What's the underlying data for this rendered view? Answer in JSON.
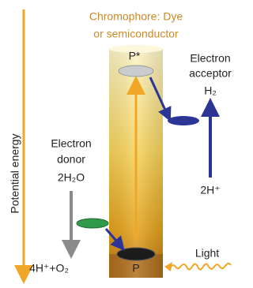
{
  "chromophore": {
    "title": [
      "Chromophore: Dye",
      "or semiconductor"
    ],
    "excited_state": "P*",
    "ground_state": "P"
  },
  "axis_label": "Potential energy",
  "acceptor": {
    "label": [
      "Electron",
      "acceptor"
    ],
    "product": "H₂",
    "reactant": "2H⁺"
  },
  "donor": {
    "label": [
      "Electron",
      "donor"
    ],
    "reactant": "2H₂O",
    "product": "4H⁺+O₂"
  },
  "light": "Light"
}
